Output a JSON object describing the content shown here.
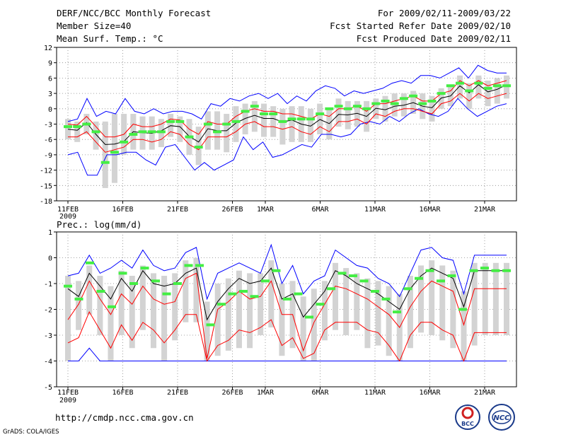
{
  "header": {
    "title": "DERF/NCC/BCC Monthly Forecast",
    "member_size": "Member Size=40",
    "variable_top": "Mean Surf. Temp.: °C",
    "period": "For 2009/02/11-2009/03/22",
    "fcst_started": "Fcst Started Refer Date 2009/02/10",
    "fcst_produced": "Fcst Produced Date 2009/02/11"
  },
  "footer": {
    "url": "http://cmdp.ncc.cma.gov.cn",
    "credit": "GrADS: COLA/IGES",
    "logo_bcc": "BCC",
    "logo_ncc": "NCC"
  },
  "colors": {
    "ensemble_mean": "#000000",
    "ensemble_range": "#0000ff",
    "std_band": "#ff0000",
    "box": "#d3d3d3",
    "marker": "#44ee44",
    "grid": "#888888"
  },
  "chart_data": [
    {
      "type": "line",
      "title": "Mean Surf. Temp.: °C",
      "ylim": [
        -18,
        12
      ],
      "yticks": [
        12,
        9,
        6,
        3,
        0,
        -3,
        -6,
        -9,
        -12,
        -15,
        -18
      ],
      "ytick_labels": [
        "12",
        "9",
        "6",
        "3",
        "0",
        "-3",
        "-6",
        "-9",
        "-12",
        "-15",
        "-18"
      ],
      "x_days": 40,
      "xticks": [
        {
          "day": 0,
          "label": "11FEB"
        },
        {
          "day": 5,
          "label": "16FEB"
        },
        {
          "day": 10,
          "label": "21FEB"
        },
        {
          "day": 15,
          "label": "26FEB"
        },
        {
          "day": 18,
          "label": "1MAR"
        },
        {
          "day": 23,
          "label": "6MAR"
        },
        {
          "day": 28,
          "label": "11MAR"
        },
        {
          "day": 33,
          "label": "16MAR"
        },
        {
          "day": 38,
          "label": "21MAR"
        }
      ],
      "year_label": "2009",
      "series": [
        {
          "name": "mean",
          "values": [
            -4.0,
            -4.2,
            -2.7,
            -5.0,
            -7.0,
            -6.9,
            -6.4,
            -4.5,
            -4.7,
            -4.8,
            -4.3,
            -3.3,
            -3.5,
            -5.4,
            -6.5,
            -3.9,
            -4.3,
            -4.3,
            -2.8,
            -1.9,
            -1.3,
            -1.9,
            -1.9,
            -2.6,
            -2.2,
            -3.0,
            -3.4,
            -2.1,
            -2.9,
            -1.1,
            -1.2,
            -0.9,
            -1.5,
            0.1,
            -0.2,
            0.5,
            0.7,
            1.2,
            0.5,
            0.2,
            2.1,
            2.5,
            4.5,
            3.1,
            4.7,
            3.3,
            3.8,
            4.7
          ]
        },
        {
          "name": "upper",
          "values": [
            -2.5,
            -2.0,
            2.0,
            -1.5,
            -0.5,
            -1.0,
            2.0,
            -0.5,
            -1.0,
            0.0,
            -1.0,
            -0.5,
            -0.5,
            -1.0,
            -2.0,
            1.0,
            0.5,
            2.0,
            1.5,
            2.5,
            3.0,
            2.0,
            3.0,
            1.0,
            2.5,
            1.5,
            3.5,
            4.5,
            4.0,
            2.5,
            3.5,
            3.0,
            3.5,
            4.0,
            5.0,
            5.5,
            5.0,
            6.5,
            6.5,
            6.0,
            7.0,
            8.0,
            6.0,
            8.5,
            7.5,
            7.0,
            7.0
          ]
        },
        {
          "name": "lower",
          "values": [
            -9.0,
            -8.5,
            -13.0,
            -13.0,
            -9.0,
            -9.0,
            -8.5,
            -8.5,
            -10.0,
            -11.0,
            -7.5,
            -7.0,
            -9.5,
            -12.0,
            -10.5,
            -12.0,
            -11.0,
            -10.0,
            -5.5,
            -8.0,
            -6.5,
            -9.5,
            -9.0,
            -8.0,
            -7.0,
            -7.5,
            -5.0,
            -5.0,
            -5.5,
            -5.0,
            -3.0,
            -2.5,
            -3.0,
            -1.5,
            -2.5,
            -1.0,
            0.0,
            -1.0,
            -1.5,
            -0.5,
            2.0,
            0.0,
            -1.5,
            -0.5,
            0.5,
            1.0
          ]
        },
        {
          "name": "std_upper",
          "values": [
            -3.0,
            -3.2,
            -1.5,
            -3.5,
            -5.5,
            -5.5,
            -5.0,
            -3.0,
            -3.5,
            -3.5,
            -3.0,
            -2.0,
            -2.2,
            -4.0,
            -5.0,
            -2.5,
            -3.0,
            -3.0,
            -1.5,
            -0.5,
            0.0,
            -0.5,
            -0.5,
            -1.0,
            -1.0,
            -1.5,
            -2.0,
            -1.0,
            -1.5,
            0.0,
            0.0,
            0.5,
            -0.5,
            1.0,
            1.0,
            1.5,
            2.0,
            2.5,
            1.5,
            1.5,
            3.0,
            3.5,
            5.5,
            4.5,
            5.5,
            4.5,
            5.0,
            5.5
          ]
        },
        {
          "name": "std_lower",
          "values": [
            -5.5,
            -5.5,
            -4.5,
            -6.5,
            -8.5,
            -8.0,
            -7.5,
            -6.0,
            -6.0,
            -6.5,
            -6.0,
            -4.5,
            -5.0,
            -7.0,
            -8.0,
            -5.5,
            -5.5,
            -5.5,
            -4.5,
            -3.0,
            -2.5,
            -3.5,
            -3.5,
            -4.0,
            -3.5,
            -4.5,
            -5.0,
            -3.5,
            -4.5,
            -2.5,
            -2.5,
            -2.0,
            -3.0,
            -1.0,
            -1.5,
            -0.5,
            0.0,
            0.0,
            -0.5,
            -1.0,
            1.0,
            1.5,
            3.0,
            1.5,
            3.0,
            2.0,
            2.5,
            3.0
          ]
        },
        {
          "name": "markers",
          "values": [
            -3.5,
            -3.5,
            -3.0,
            -4.5,
            -10.5,
            -8.5,
            -6.5,
            -5.0,
            -4.5,
            -4.5,
            -4.5,
            -2.5,
            -2.5,
            -5.5,
            -7.5,
            -3.0,
            -4.5,
            -3.0,
            -2.5,
            -0.5,
            0.5,
            -1.0,
            -1.0,
            -2.5,
            -2.0,
            -2.0,
            -2.0,
            -1.0,
            0.0,
            0.5,
            0.0,
            0.5,
            0.0,
            1.0,
            1.5,
            1.0,
            2.0,
            2.5,
            1.0,
            1.5,
            3.0,
            4.5,
            5.0,
            3.5,
            5.0,
            4.0,
            4.5,
            4.5
          ]
        },
        {
          "name": "box_top",
          "values": [
            -2.0,
            -2.5,
            -1.0,
            -2.5,
            -2.5,
            -1.0,
            -1.0,
            -1.0,
            -1.5,
            -1.5,
            -2.0,
            -1.0,
            -1.5,
            -2.0,
            -3.5,
            -0.5,
            -0.5,
            -1.0,
            0.5,
            1.0,
            1.5,
            1.0,
            0.5,
            0.0,
            0.5,
            0.5,
            0.0,
            1.0,
            0.0,
            2.0,
            1.5,
            1.5,
            1.5,
            2.0,
            2.5,
            3.0,
            3.0,
            3.5,
            3.0,
            2.5,
            4.0,
            4.5,
            6.5,
            5.0,
            6.5,
            5.5,
            6.0,
            6.5
          ]
        },
        {
          "name": "box_bottom",
          "values": [
            -6.0,
            -6.5,
            -5.0,
            -8.0,
            -15.5,
            -14.5,
            -9.0,
            -8.0,
            -8.0,
            -8.0,
            -7.5,
            -5.5,
            -6.5,
            -9.0,
            -11.0,
            -8.0,
            -8.0,
            -8.5,
            -6.5,
            -5.0,
            -4.5,
            -5.5,
            -5.5,
            -7.0,
            -6.5,
            -6.5,
            -6.5,
            -5.0,
            -6.0,
            -3.5,
            -4.0,
            -3.5,
            -4.5,
            -2.0,
            -2.5,
            -1.5,
            -1.5,
            -1.0,
            -2.0,
            -2.5,
            0.0,
            0.5,
            2.0,
            0.0,
            2.0,
            0.5,
            1.0,
            2.0
          ]
        }
      ]
    },
    {
      "type": "line",
      "title": "Prec.: log(mm/d)",
      "ylim": [
        -5,
        1
      ],
      "yticks": [
        1,
        0,
        -1,
        -2,
        -3,
        -4,
        -5
      ],
      "ytick_labels": [
        "1",
        "0",
        "-1",
        "-2",
        "-3",
        "-4",
        "-5"
      ],
      "x_days": 40,
      "xticks": [
        {
          "day": 0,
          "label": "11FEB"
        },
        {
          "day": 5,
          "label": "16FEB"
        },
        {
          "day": 10,
          "label": "21FEB"
        },
        {
          "day": 15,
          "label": "26FEB"
        },
        {
          "day": 18,
          "label": "1MAR"
        },
        {
          "day": 23,
          "label": "6MAR"
        },
        {
          "day": 28,
          "label": "11MAR"
        },
        {
          "day": 33,
          "label": "16MAR"
        },
        {
          "day": 38,
          "label": "21MAR"
        }
      ],
      "year_label": "2009",
      "series": [
        {
          "name": "mean",
          "values": [
            -1.2,
            -1.5,
            -0.6,
            -1.1,
            -1.6,
            -0.8,
            -1.3,
            -0.5,
            -1.0,
            -1.1,
            -1.0,
            -0.6,
            -0.4,
            -2.4,
            -1.7,
            -1.2,
            -0.8,
            -1.0,
            -0.9,
            -0.4,
            -1.6,
            -1.4,
            -2.3,
            -1.8,
            -1.3,
            -0.5,
            -0.7,
            -1.0,
            -1.2,
            -1.4,
            -1.7,
            -2.0,
            -1.2,
            -0.7,
            -0.4,
            -0.6,
            -0.8,
            -1.9,
            -0.5,
            -0.5,
            -0.5,
            -0.5
          ]
        },
        {
          "name": "upper",
          "values": [
            -0.7,
            -0.6,
            0.1,
            -0.6,
            -0.4,
            -0.1,
            -0.4,
            0.3,
            -0.3,
            -0.5,
            -0.4,
            0.2,
            0.4,
            -1.6,
            -0.6,
            -0.4,
            -0.2,
            -0.4,
            -0.6,
            0.5,
            -1.0,
            -0.3,
            -1.4,
            -0.9,
            -0.7,
            0.3,
            0.0,
            -0.3,
            -0.4,
            -0.8,
            -1.0,
            -1.5,
            -0.6,
            0.3,
            0.4,
            0.0,
            -0.1,
            -1.4,
            0.1,
            0.1,
            0.1,
            0.1
          ]
        },
        {
          "name": "lower",
          "values": [
            -4.0,
            -4.0,
            -3.5,
            -4.0,
            -4.0,
            -4.0,
            -4.0,
            -4.0,
            -4.0,
            -4.0,
            -4.0,
            -4.0,
            -4.0,
            -4.0,
            -4.0,
            -4.0,
            -4.0,
            -4.0,
            -4.0,
            -4.0,
            -4.0,
            -4.0,
            -4.0,
            -4.0,
            -4.0,
            -4.0,
            -4.0,
            -4.0,
            -4.0,
            -4.0,
            -4.0,
            -4.0,
            -4.0,
            -4.0,
            -4.0,
            -4.0,
            -4.0,
            -4.0,
            -4.0,
            -4.0,
            -4.0,
            -4.0
          ]
        },
        {
          "name": "std_upper",
          "values": [
            -2.4,
            -1.8,
            -0.9,
            -1.6,
            -2.2,
            -1.4,
            -1.8,
            -1.1,
            -1.6,
            -1.8,
            -1.7,
            -0.8,
            -0.6,
            -3.9,
            -2.0,
            -1.7,
            -1.3,
            -1.6,
            -1.5,
            -0.9,
            -2.2,
            -2.2,
            -3.6,
            -2.5,
            -1.8,
            -1.1,
            -1.2,
            -1.4,
            -1.6,
            -1.9,
            -2.2,
            -2.7,
            -1.9,
            -1.3,
            -0.9,
            -1.1,
            -1.3,
            -2.6,
            -1.2,
            -1.2,
            -1.2,
            -1.2
          ]
        },
        {
          "name": "std_lower",
          "values": [
            -3.3,
            -3.1,
            -2.1,
            -2.8,
            -3.5,
            -2.6,
            -3.2,
            -2.5,
            -2.8,
            -3.3,
            -2.8,
            -2.2,
            -2.2,
            -4.0,
            -3.4,
            -3.2,
            -2.8,
            -2.9,
            -2.7,
            -2.4,
            -3.4,
            -3.1,
            -3.9,
            -3.7,
            -2.8,
            -2.5,
            -2.5,
            -2.5,
            -2.8,
            -2.9,
            -3.4,
            -4.0,
            -3.0,
            -2.5,
            -2.5,
            -2.8,
            -3.0,
            -4.0,
            -2.9,
            -2.9,
            -2.9,
            -2.9
          ]
        },
        {
          "name": "markers",
          "values": [
            -1.1,
            -1.6,
            -0.2,
            -1.3,
            -1.9,
            -0.6,
            -1.0,
            -0.4,
            -0.9,
            -1.4,
            -1.0,
            -0.3,
            -0.3,
            -2.6,
            -1.8,
            -1.4,
            -1.3,
            -1.5,
            -0.9,
            -0.5,
            -1.6,
            -1.4,
            -2.3,
            -1.8,
            -1.2,
            -0.6,
            -0.7,
            -0.9,
            -1.3,
            -1.6,
            -2.1,
            -1.2,
            -0.8,
            -0.5,
            -0.9,
            -0.7,
            -2.0,
            -0.5,
            -0.4,
            -0.5,
            -0.5
          ]
        },
        {
          "name": "box_top",
          "values": [
            -0.7,
            -0.9,
            -0.3,
            -0.7,
            -1.1,
            -0.5,
            -0.7,
            -0.3,
            -0.6,
            -0.7,
            -0.6,
            -0.1,
            0.0,
            -1.7,
            -1.0,
            -0.8,
            -0.5,
            -0.6,
            -0.6,
            -0.1,
            -1.0,
            -0.9,
            -1.5,
            -1.2,
            -0.9,
            -0.2,
            -0.4,
            -0.6,
            -0.8,
            -0.9,
            -1.1,
            -1.4,
            -0.7,
            -0.3,
            -0.1,
            -0.3,
            -0.5,
            -1.3,
            -0.2,
            -0.2,
            -0.2,
            -0.2
          ]
        },
        {
          "name": "box_bottom",
          "values": [
            -4.0,
            -2.8,
            -2.2,
            -3.0,
            -4.0,
            -3.0,
            -3.5,
            -2.8,
            -3.5,
            -4.0,
            -3.2,
            -2.5,
            -2.5,
            -4.0,
            -3.8,
            -3.6,
            -3.5,
            -3.5,
            -3.0,
            -2.7,
            -3.8,
            -3.5,
            -4.0,
            -4.0,
            -3.2,
            -2.8,
            -3.0,
            -2.8,
            -3.5,
            -3.4,
            -3.8,
            -4.0,
            -3.5,
            -2.9,
            -3.0,
            -3.2,
            -3.5,
            -4.0,
            -3.4,
            -3.0,
            -3.0,
            -3.0
          ]
        }
      ]
    }
  ]
}
